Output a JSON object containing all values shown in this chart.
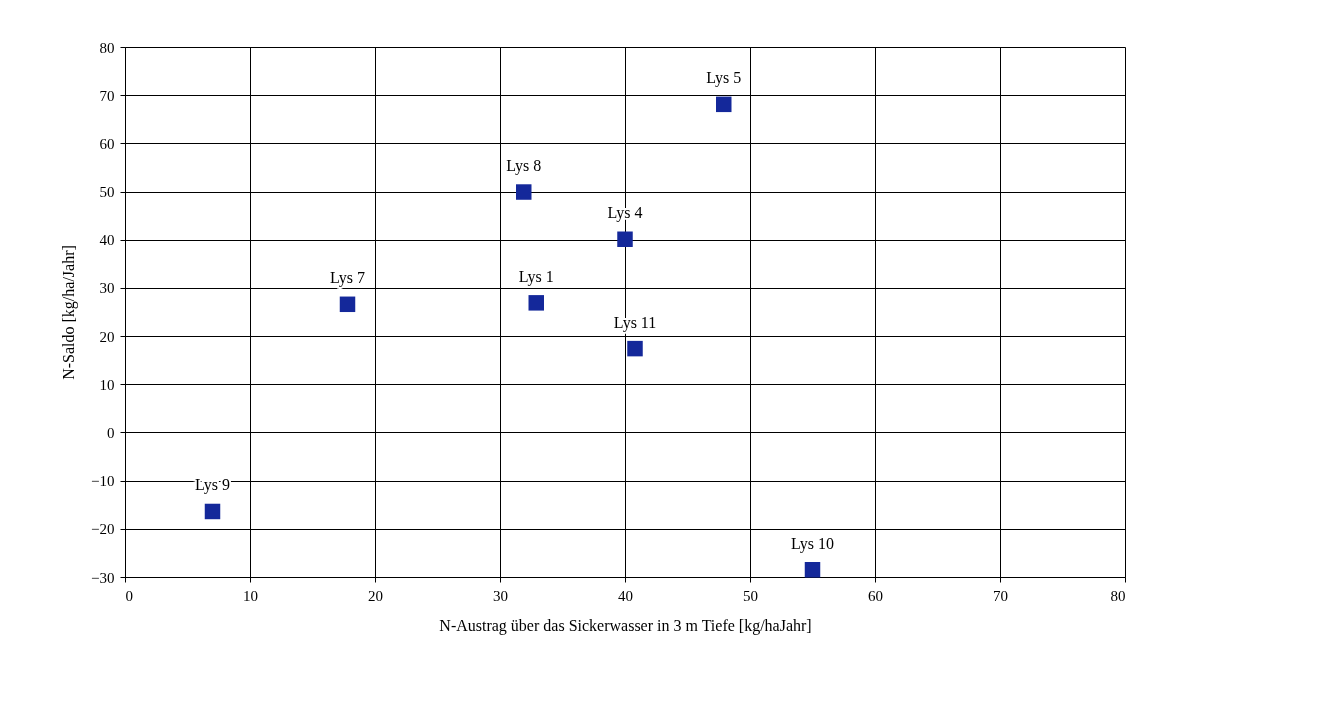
{
  "chart_data": {
    "type": "scatter",
    "xlabel": "N-Austrag über das  Sickerwasser in 3 m Tiefe [kg/haJahr]",
    "ylabel": "N-Saldo [kg/ha/Jahr]",
    "x": [
      7,
      17.8,
      31.9,
      32.9,
      40,
      40.8,
      47.9,
      55
    ],
    "series": [
      {
        "color": "#14289a",
        "values": [
          -16.4,
          26.6,
          49.9,
          26.9,
          40.1,
          17.4,
          68.1,
          -28.5
        ]
      }
    ],
    "xlim": [
      0,
      80
    ],
    "xticks": [
      0,
      10,
      20,
      30,
      40,
      50,
      60,
      70,
      80
    ],
    "ylim": [
      -30,
      80
    ],
    "yticks": [
      -30,
      -20,
      -10,
      0,
      10,
      20,
      30,
      40,
      50,
      60,
      70,
      80
    ],
    "grid": true,
    "marker": "square",
    "annotations": [
      {
        "text": "Lys 9",
        "x": 7,
        "y": -16.4
      },
      {
        "text": "Lys 7",
        "x": 17.8,
        "y": 26.6
      },
      {
        "text": "Lys 8",
        "x": 31.9,
        "y": 49.9
      },
      {
        "text": "Lys 1",
        "x": 32.9,
        "y": 26.9
      },
      {
        "text": "Lys 4",
        "x": 40,
        "y": 40.1
      },
      {
        "text": "Lys 11",
        "x": 40.8,
        "y": 17.4
      },
      {
        "text": "Lys 5",
        "x": 47.9,
        "y": 68.1
      },
      {
        "text": "Lys 10",
        "x": 55,
        "y": -28.5
      }
    ]
  }
}
